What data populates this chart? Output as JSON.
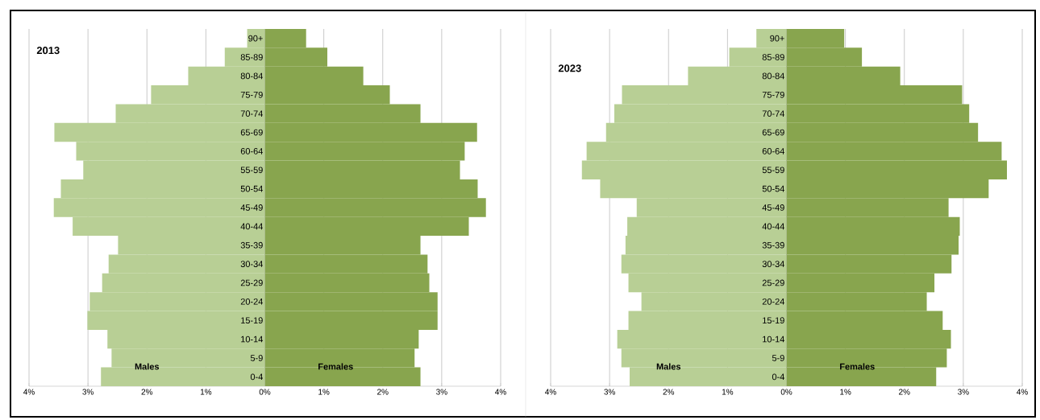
{
  "chart_data": [
    {
      "type": "bar",
      "orientation": "horizontal",
      "stacked": true,
      "title": "2013",
      "categories": [
        "90+",
        "85-89",
        "80-84",
        "75-79",
        "70-74",
        "65-69",
        "60-64",
        "55-59",
        "50-54",
        "45-49",
        "40-44",
        "35-39",
        "30-34",
        "25-29",
        "20-24",
        "15-19",
        "10-14",
        "5-9",
        "0-4"
      ],
      "series": [
        {
          "name": "Males",
          "color": "#b8cf95",
          "values": [
            -0.3,
            -0.68,
            -1.3,
            -1.93,
            -2.53,
            -3.57,
            -3.2,
            -3.08,
            -3.46,
            -3.58,
            -3.26,
            -2.49,
            -2.65,
            -2.76,
            -2.97,
            -3.01,
            -2.67,
            -2.6,
            -2.78
          ]
        },
        {
          "name": "Females",
          "color": "#88a54e",
          "values": [
            0.7,
            1.06,
            1.67,
            2.12,
            2.64,
            3.6,
            3.39,
            3.31,
            3.61,
            3.75,
            3.46,
            2.64,
            2.76,
            2.79,
            2.93,
            2.93,
            2.61,
            2.54,
            2.64
          ]
        }
      ],
      "xlim": [
        -4,
        4
      ],
      "xticks": [
        {
          "value": -4,
          "label": "4%"
        },
        {
          "value": -3,
          "label": "3%"
        },
        {
          "value": -2,
          "label": "2%"
        },
        {
          "value": -1,
          "label": "1%"
        },
        {
          "value": 0,
          "label": "0%"
        },
        {
          "value": 1,
          "label": "1%"
        },
        {
          "value": 2,
          "label": "2%"
        },
        {
          "value": 3,
          "label": "3%"
        },
        {
          "value": 4,
          "label": "4%"
        }
      ],
      "grid": "x"
    },
    {
      "type": "bar",
      "orientation": "horizontal",
      "stacked": true,
      "title": "2023",
      "categories": [
        "90+",
        "85-89",
        "80-84",
        "75-79",
        "70-74",
        "65-69",
        "60-64",
        "55-59",
        "50-54",
        "45-49",
        "40-44",
        "35-39",
        "30-34",
        "25-29",
        "20-24",
        "15-19",
        "10-14",
        "5-9",
        "0-4"
      ],
      "series": [
        {
          "name": "Males",
          "color": "#b8cf95",
          "values": [
            -0.51,
            -0.97,
            -1.67,
            -2.79,
            -2.92,
            -3.06,
            -3.39,
            -3.47,
            -3.16,
            -2.54,
            -2.7,
            -2.73,
            -2.8,
            -2.68,
            -2.46,
            -2.68,
            -2.87,
            -2.8,
            -2.66
          ]
        },
        {
          "name": "Females",
          "color": "#88a54e",
          "values": [
            0.98,
            1.28,
            1.93,
            2.98,
            3.1,
            3.25,
            3.65,
            3.74,
            3.43,
            2.75,
            2.94,
            2.92,
            2.8,
            2.51,
            2.38,
            2.65,
            2.79,
            2.72,
            2.54
          ]
        }
      ],
      "xlim": [
        -4,
        4
      ],
      "xticks": [
        {
          "value": -4,
          "label": "4%"
        },
        {
          "value": -3,
          "label": "3%"
        },
        {
          "value": -2,
          "label": "2%"
        },
        {
          "value": -1,
          "label": "1%"
        },
        {
          "value": 0,
          "label": "0%"
        },
        {
          "value": 1,
          "label": "1%"
        },
        {
          "value": 2,
          "label": "2%"
        },
        {
          "value": 3,
          "label": "3%"
        },
        {
          "value": 4,
          "label": "4%"
        }
      ],
      "grid": "x"
    }
  ]
}
